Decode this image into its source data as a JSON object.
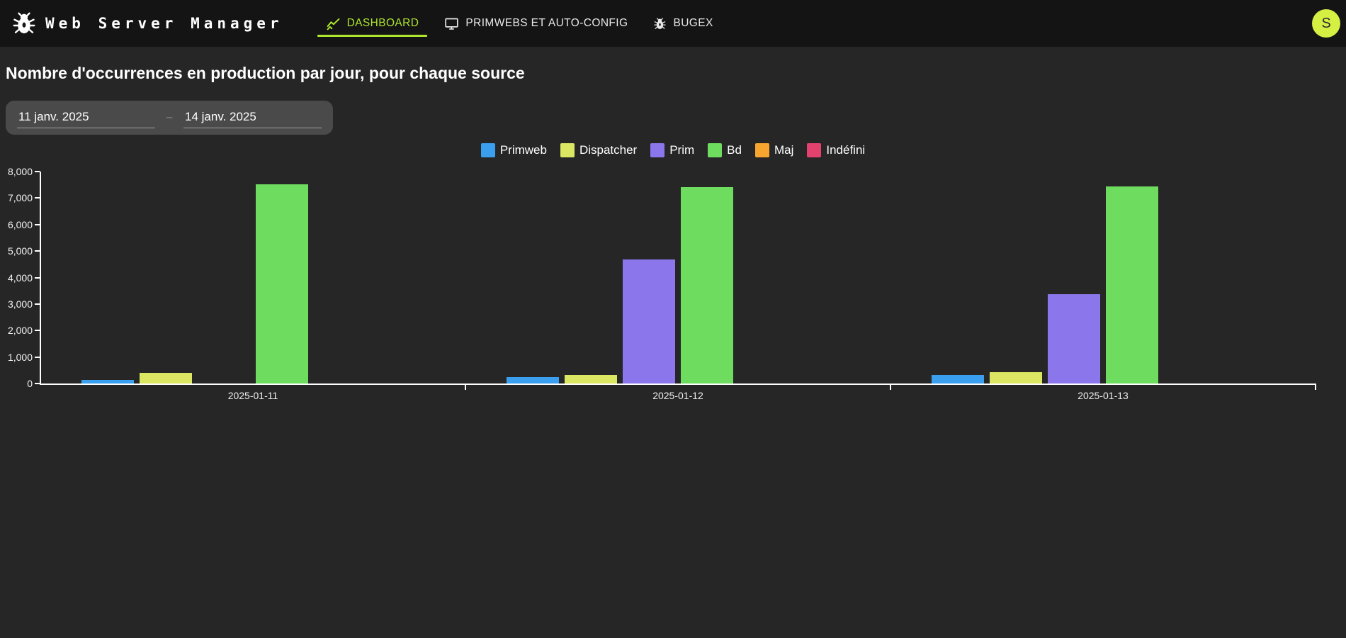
{
  "nav": {
    "brand": "Web Server Manager",
    "tabs": [
      {
        "label": "DASHBOARD",
        "icon": "line-chart-icon",
        "active": true
      },
      {
        "label": "PRIMWEBS ET AUTO-CONFIG",
        "icon": "monitor-icon",
        "active": false
      },
      {
        "label": "BUGEX",
        "icon": "bug-icon",
        "active": false
      }
    ],
    "avatar_initial": "S"
  },
  "page": {
    "title": "Nombre d'occurrences en production par jour, pour chaque source"
  },
  "date_range": {
    "start_value": "11 janv. 2025",
    "separator": "–",
    "end_value": "14 janv. 2025"
  },
  "colors": {
    "navbar_bg": "#141414",
    "page_bg": "#262626",
    "accent_lime": "#aee62e",
    "avatar_bg": "#d6ef43",
    "date_box_bg": "#4a4a4a",
    "axis": "#ffffff"
  },
  "chart_data": {
    "type": "bar",
    "title": "Nombre d'occurrences en production par jour, pour chaque source",
    "categories": [
      "2025-01-11",
      "2025-01-12",
      "2025-01-13"
    ],
    "series": [
      {
        "name": "Primweb",
        "color": "#3b9ff0",
        "values": [
          140,
          240,
          330
        ]
      },
      {
        "name": "Dispatcher",
        "color": "#dbe763",
        "values": [
          410,
          330,
          420
        ]
      },
      {
        "name": "Prim",
        "color": "#8b76ec",
        "values": [
          0,
          4690,
          3370
        ]
      },
      {
        "name": "Bd",
        "color": "#6edc5e",
        "values": [
          7510,
          7420,
          7450
        ]
      },
      {
        "name": "Maj",
        "color": "#f6a52f",
        "values": [
          0,
          0,
          0
        ]
      },
      {
        "name": "Indéfini",
        "color": "#e4426e",
        "values": [
          0,
          0,
          0
        ]
      }
    ],
    "xlabel": "",
    "ylabel": "",
    "ylim": [
      0,
      8000
    ],
    "ytick_step": 1000,
    "legend_position": "top",
    "grid": false
  }
}
